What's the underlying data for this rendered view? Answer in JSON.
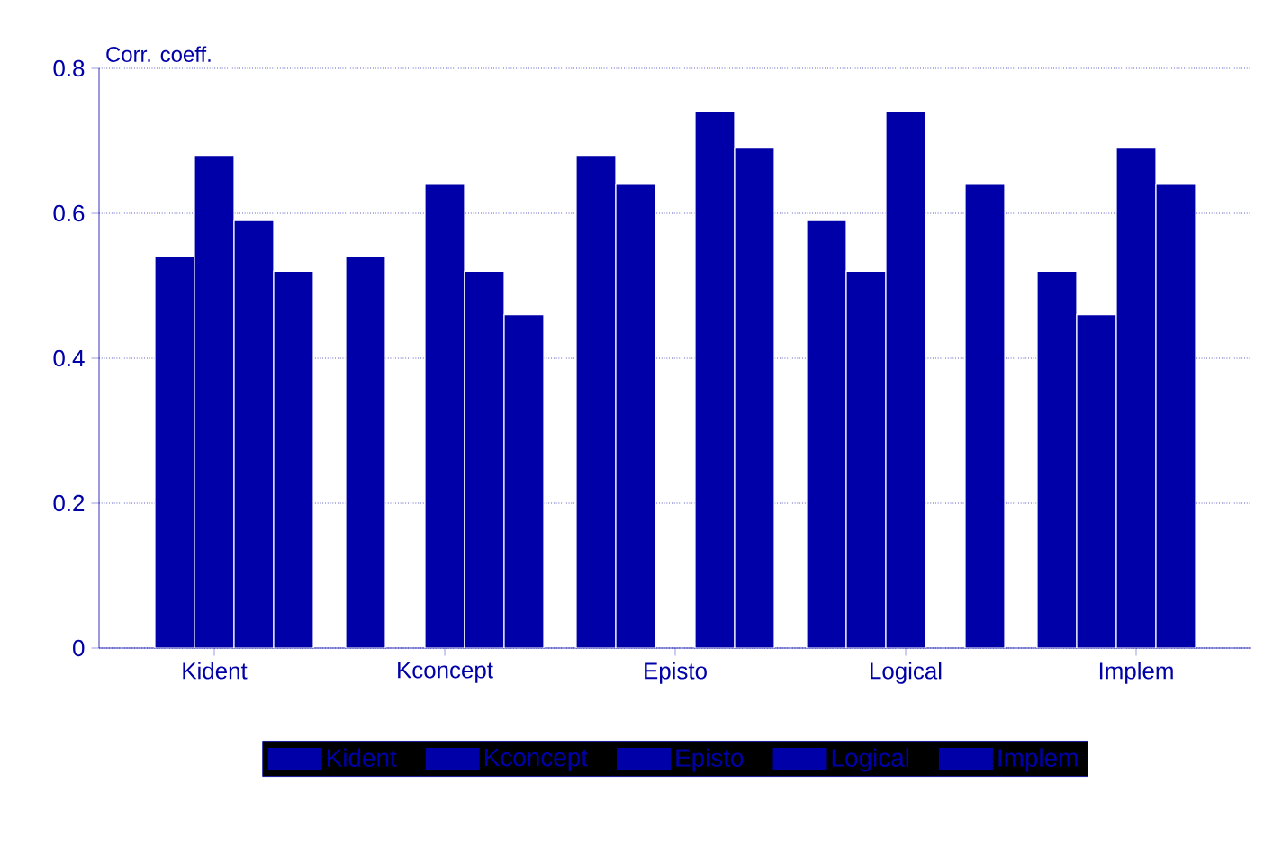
{
  "chart_data": {
    "type": "bar",
    "ylabel": "Corr. coeff.",
    "categories": [
      "Kident",
      "Kconcept",
      "Episto",
      "Logical",
      "Implem"
    ],
    "series": [
      {
        "name": "Kident",
        "color": "#0000a8",
        "values": [
          null,
          0.54,
          0.68,
          0.59,
          0.52
        ]
      },
      {
        "name": "Kconcept",
        "color": "#0000a8",
        "values": [
          0.54,
          null,
          0.64,
          0.52,
          0.46
        ]
      },
      {
        "name": "Episto",
        "color": "#0000a8",
        "values": [
          0.68,
          0.64,
          null,
          0.74,
          0.69
        ]
      },
      {
        "name": "Logical",
        "color": "#0000a8",
        "values": [
          0.59,
          0.52,
          0.74,
          null,
          0.64
        ]
      },
      {
        "name": "Implem",
        "color": "#0000a8",
        "values": [
          0.52,
          0.46,
          0.69,
          0.64,
          null
        ]
      }
    ],
    "ylim": [
      0,
      0.8
    ],
    "yticks": [
      0,
      0.2,
      0.4,
      0.6,
      0.8
    ],
    "grid": "y",
    "legend": "bottom"
  }
}
